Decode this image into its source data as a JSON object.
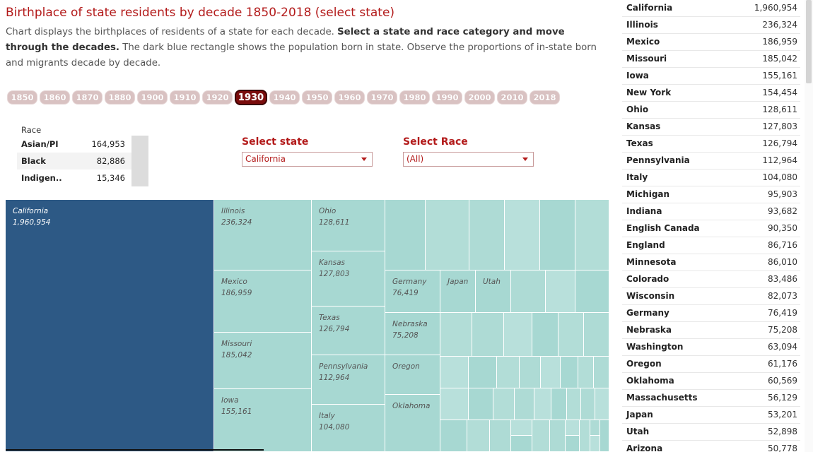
{
  "header": {
    "title": "Birthplace  of state residents by decade 1850-2018 (select state)",
    "desc_1": "Chart displays the birthplaces of residents of a state for each decade. ",
    "desc_2": "Select a state and race category and move through the decades.",
    "desc_3": " The dark blue rectangle shows the population born in state. Observe the proportions of in-state born and migrants decade by decade."
  },
  "decades": {
    "items": [
      "1850",
      "1860",
      "1870",
      "1880",
      "1900",
      "1910",
      "1920",
      "1930",
      "1940",
      "1950",
      "1960",
      "1970",
      "1980",
      "1990",
      "2000",
      "2010",
      "2018"
    ],
    "selected": "1930",
    "colors": {
      "inactive": "#d9c2c2",
      "active": "#7a0c0c"
    }
  },
  "race_table": {
    "header": "Race",
    "rows": [
      {
        "label": "Asian/PI",
        "value": "164,953"
      },
      {
        "label": "Black",
        "value": "82,886"
      },
      {
        "label": "Indigen..",
        "value": "15,346"
      }
    ]
  },
  "filters": {
    "state_label": "Select state",
    "state_value": "California",
    "race_label": "Select Race",
    "race_value": "(All)"
  },
  "treemap": {
    "colors": {
      "in_state": "#2d5985",
      "other": "#a7d8d2"
    },
    "labelled": [
      {
        "name": "California",
        "value": "1,960,954"
      },
      {
        "name": "Illinois",
        "value": "236,324"
      },
      {
        "name": "Mexico",
        "value": "186,959"
      },
      {
        "name": "Missouri",
        "value": "185,042"
      },
      {
        "name": "Iowa",
        "value": "155,161"
      },
      {
        "name": "Ohio",
        "value": "128,611"
      },
      {
        "name": "Kansas",
        "value": "127,803"
      },
      {
        "name": "Texas",
        "value": "126,794"
      },
      {
        "name": "Pennsylvania",
        "value": "112,964"
      },
      {
        "name": "Italy",
        "value": "104,080"
      },
      {
        "name": "Germany",
        "value": "76,419"
      },
      {
        "name": "Nebraska",
        "value": "75,208"
      },
      {
        "name": "Japan",
        "value": ""
      },
      {
        "name": "Utah",
        "value": ""
      },
      {
        "name": "Oregon",
        "value": ""
      },
      {
        "name": "Oklahoma",
        "value": ""
      }
    ]
  },
  "birthplace_list": {
    "rows": [
      {
        "name": "California",
        "value": "1,960,954"
      },
      {
        "name": "Illinois",
        "value": "236,324"
      },
      {
        "name": "Mexico",
        "value": "186,959"
      },
      {
        "name": "Missouri",
        "value": "185,042"
      },
      {
        "name": "Iowa",
        "value": "155,161"
      },
      {
        "name": "New York",
        "value": "154,454"
      },
      {
        "name": "Ohio",
        "value": "128,611"
      },
      {
        "name": "Kansas",
        "value": "127,803"
      },
      {
        "name": "Texas",
        "value": "126,794"
      },
      {
        "name": "Pennsylvania",
        "value": "112,964"
      },
      {
        "name": "Italy",
        "value": "104,080"
      },
      {
        "name": "Michigan",
        "value": "95,903"
      },
      {
        "name": "Indiana",
        "value": "93,682"
      },
      {
        "name": "English Canada",
        "value": "90,350"
      },
      {
        "name": "England",
        "value": "86,716"
      },
      {
        "name": "Minnesota",
        "value": "86,010"
      },
      {
        "name": "Colorado",
        "value": "83,486"
      },
      {
        "name": "Wisconsin",
        "value": "82,073"
      },
      {
        "name": "Germany",
        "value": "76,419"
      },
      {
        "name": "Nebraska",
        "value": "75,208"
      },
      {
        "name": "Washington",
        "value": "63,094"
      },
      {
        "name": "Oregon",
        "value": "61,176"
      },
      {
        "name": "Oklahoma",
        "value": "60,569"
      },
      {
        "name": "Massachusetts",
        "value": "56,129"
      },
      {
        "name": "Japan",
        "value": "53,201"
      },
      {
        "name": "Utah",
        "value": "52,898"
      },
      {
        "name": "Arizona",
        "value": "50,778"
      }
    ]
  }
}
